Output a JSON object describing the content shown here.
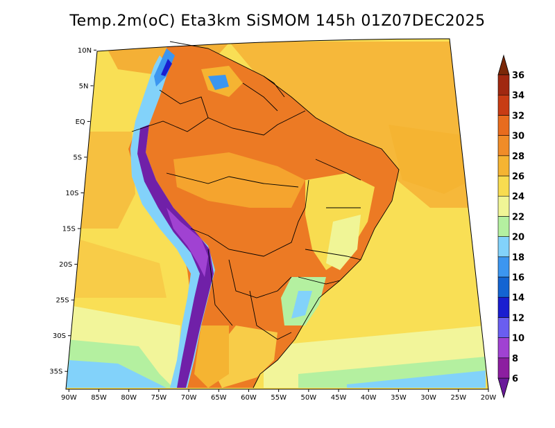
{
  "title": "Temp.2m(oC) Eta3km SiSMOM 145h 01Z07DEC2025",
  "map": {
    "lat_labels": [
      "10N",
      "5N",
      "EQ",
      "5S",
      "10S",
      "15S",
      "20S",
      "25S",
      "30S",
      "35S"
    ],
    "lat_values": [
      10,
      5,
      0,
      -5,
      -10,
      -15,
      -20,
      -25,
      -30,
      -35
    ],
    "lon_labels": [
      "90W",
      "85W",
      "80W",
      "75W",
      "70W",
      "65W",
      "60W",
      "55W",
      "50W",
      "45W",
      "40W",
      "35W",
      "30W",
      "25W",
      "20W"
    ],
    "lon_values": [
      -90,
      -85,
      -80,
      -75,
      -70,
      -65,
      -60,
      -55,
      -50,
      -45,
      -40,
      -35,
      -30,
      -25,
      -20
    ],
    "extent": {
      "lon_min": -90.5,
      "lon_max": -20,
      "lat_min": -37.5,
      "lat_max": 11
    }
  },
  "legend": {
    "labels": [
      "6",
      "8",
      "10",
      "12",
      "14",
      "16",
      "18",
      "20",
      "22",
      "24",
      "26",
      "28",
      "30",
      "32",
      "34",
      "36"
    ],
    "values": [
      6,
      8,
      10,
      12,
      14,
      16,
      18,
      20,
      22,
      24,
      26,
      28,
      30,
      32,
      34,
      36
    ],
    "bin_colors": [
      "#8c1ea0",
      "#a042d2",
      "#6a5ef0",
      "#1a1ed0",
      "#1464d2",
      "#3c96f0",
      "#82d2fa",
      "#b4f0a0",
      "#f0f596",
      "#f8dc50",
      "#f5b432",
      "#f08c28",
      "#e86c1e",
      "#c83c14",
      "#a02810"
    ],
    "low_color": "#6a1a9a",
    "high_color": "#7a2808"
  },
  "colors": {
    "ocean_warm": "#f6b83a",
    "ocean_mid": "#f9df55",
    "ocean_cool": "#f2f59a",
    "land_hot": "#ec7a24",
    "andes_cold": "#7020a8"
  }
}
